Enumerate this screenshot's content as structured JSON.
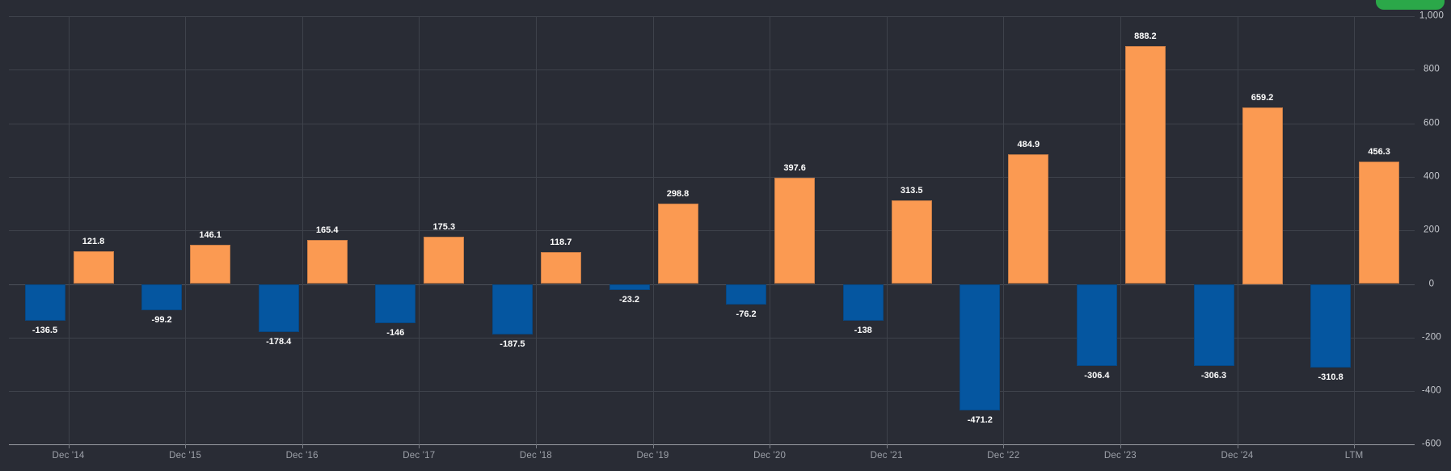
{
  "chart_data": {
    "type": "bar",
    "title": "",
    "xlabel": "",
    "ylabel": "",
    "categories": [
      "Dec '14",
      "Dec '15",
      "Dec '16",
      "Dec '17",
      "Dec '18",
      "Dec '19",
      "Dec '20",
      "Dec '21",
      "Dec '22",
      "Dec '23",
      "Dec '24",
      "LTM"
    ],
    "series": [
      {
        "name": "negative",
        "color": "#0556a0",
        "values": [
          -136.5,
          -99.2,
          -178.4,
          -146,
          -187.5,
          -23.2,
          -76.2,
          -138,
          -471.2,
          -306.4,
          -306.3,
          -310.8
        ],
        "labels": [
          "-136.5",
          "-99.2",
          "-178.4",
          "-146",
          "-187.5",
          "-23.2",
          "-76.2",
          "-138",
          "-471.2",
          "-306.4",
          "-306.3",
          "-310.8"
        ]
      },
      {
        "name": "positive",
        "color": "#fb9a52",
        "values": [
          121.8,
          146.1,
          165.4,
          175.3,
          118.7,
          298.8,
          397.6,
          313.5,
          484.9,
          888.2,
          659.2,
          456.3
        ],
        "labels": [
          "121.8",
          "146.1",
          "165.4",
          "175.3",
          "118.7",
          "298.8",
          "397.6",
          "313.5",
          "484.9",
          "888.2",
          "659.2",
          "456.3"
        ]
      }
    ],
    "ylim": [
      -600,
      1000
    ],
    "y_axis_side": "right",
    "y_tick_values": [
      1000,
      800,
      600,
      400,
      200,
      0,
      -200,
      -400,
      -600
    ],
    "y_tick_labels": [
      "1,000",
      "800",
      "600",
      "400",
      "200",
      "0",
      "-200",
      "-400",
      "-600"
    ],
    "grid": true,
    "legend_position": "none",
    "value_labels_shown": true
  },
  "toolbar": {
    "primary_action_label": ""
  },
  "colors": {
    "background": "#292c35",
    "bar_negative": "#0556a0",
    "bar_positive": "#fb9a52",
    "gridline": "#3e424b",
    "zero_line": "#4d515a",
    "axis_line": "#9a9da4",
    "x_label": "#9da1a9",
    "y_label": "#c7cad0",
    "value_label": "#ffffff",
    "button_green": "#2ba849"
  }
}
